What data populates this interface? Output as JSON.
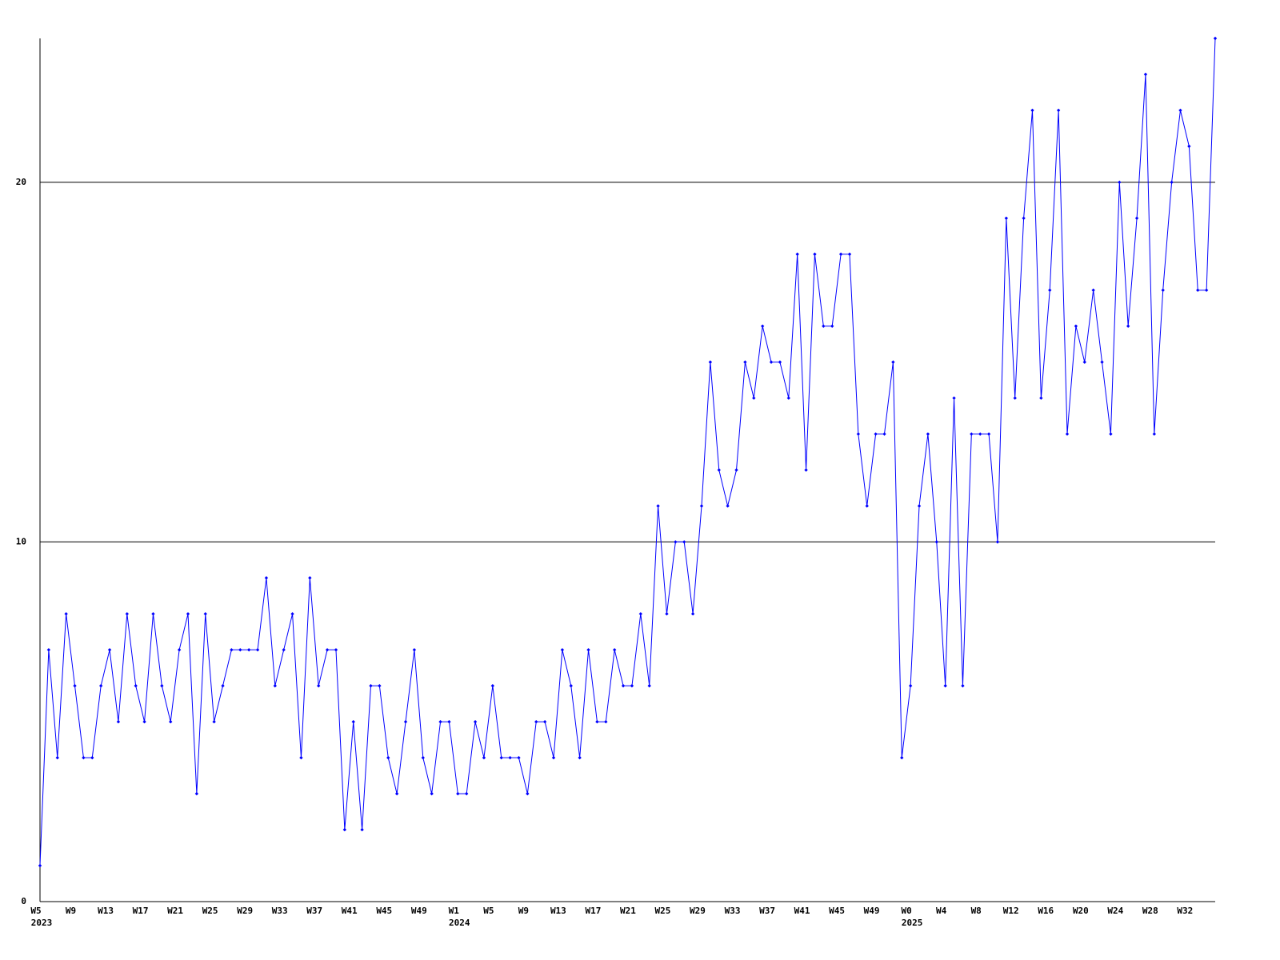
{
  "chart_data": {
    "type": "line",
    "categories": [
      "W5",
      null,
      null,
      null,
      "W9",
      null,
      null,
      null,
      "W13",
      null,
      null,
      null,
      "W17",
      null,
      null,
      null,
      "W21",
      null,
      null,
      null,
      "W25",
      null,
      null,
      null,
      "W29",
      null,
      null,
      null,
      "W33",
      null,
      null,
      null,
      "W37",
      null,
      null,
      null,
      "W41",
      null,
      null,
      null,
      "W45",
      null,
      null,
      null,
      "W49",
      null,
      null,
      null,
      "W1",
      null,
      null,
      null,
      "W5",
      null,
      null,
      null,
      "W9",
      null,
      null,
      null,
      "W13",
      null,
      null,
      null,
      "W17",
      null,
      null,
      null,
      "W21",
      null,
      null,
      null,
      "W25",
      null,
      null,
      null,
      "W29",
      null,
      null,
      null,
      "W33",
      null,
      null,
      null,
      "W37",
      null,
      null,
      null,
      "W41",
      null,
      null,
      null,
      "W45",
      null,
      null,
      null,
      "W49",
      null,
      null,
      null,
      "W0",
      null,
      null,
      null,
      "W4",
      null,
      null,
      null,
      "W8",
      null,
      null,
      null,
      "W12",
      null,
      null,
      null,
      "W16",
      null,
      null,
      null,
      "W20",
      null,
      null,
      null,
      "W24",
      null,
      null,
      null,
      "W28",
      null,
      null,
      null,
      "W32",
      null,
      null,
      null
    ],
    "category_years": [
      "2023",
      null,
      null,
      null,
      null,
      null,
      null,
      null,
      null,
      null,
      null,
      null,
      null,
      null,
      null,
      null,
      null,
      null,
      null,
      null,
      null,
      null,
      null,
      null,
      null,
      null,
      null,
      null,
      null,
      null,
      null,
      null,
      null,
      null,
      null,
      null,
      null,
      null,
      null,
      null,
      null,
      null,
      null,
      null,
      null,
      null,
      null,
      null,
      "2024",
      null,
      null,
      null,
      null,
      null,
      null,
      null,
      null,
      null,
      null,
      null,
      null,
      null,
      null,
      null,
      null,
      null,
      null,
      null,
      null,
      null,
      null,
      null,
      null,
      null,
      null,
      null,
      null,
      null,
      null,
      null,
      null,
      null,
      null,
      null,
      null,
      null,
      null,
      null,
      null,
      null,
      null,
      null,
      null,
      null,
      null,
      null,
      null,
      null,
      null,
      null,
      "2025",
      null,
      null,
      null,
      null,
      null,
      null,
      null,
      null,
      null,
      null,
      null,
      null,
      null,
      null,
      null,
      null,
      null,
      null,
      null,
      null,
      null,
      null,
      null,
      null,
      null,
      null,
      null,
      null,
      null,
      null,
      null,
      null,
      null,
      null,
      null
    ],
    "values": [
      1,
      7,
      4,
      8,
      6,
      4,
      4,
      6,
      7,
      5,
      8,
      6,
      5,
      8,
      6,
      5,
      7,
      8,
      3,
      8,
      5,
      6,
      7,
      7,
      7,
      7,
      9,
      6,
      7,
      8,
      4,
      9,
      6,
      7,
      7,
      2,
      5,
      2,
      6,
      6,
      4,
      3,
      5,
      7,
      4,
      3,
      5,
      5,
      3,
      3,
      5,
      4,
      6,
      4,
      4,
      4,
      3,
      5,
      5,
      4,
      7,
      6,
      4,
      7,
      5,
      5,
      7,
      6,
      6,
      8,
      6,
      11,
      8,
      10,
      10,
      8,
      11,
      15,
      12,
      11,
      12,
      15,
      14,
      16,
      15,
      15,
      14,
      18,
      12,
      18,
      16,
      16,
      18,
      18,
      13,
      11,
      13,
      13,
      15,
      4,
      6,
      11,
      13,
      10,
      6,
      14,
      6,
      13,
      13,
      13,
      10,
      19,
      14,
      19,
      22,
      14,
      17,
      22,
      13,
      16,
      15,
      17,
      15,
      13,
      20,
      16,
      19,
      23,
      13,
      17,
      20,
      22,
      21,
      17,
      17,
      24
    ],
    "color": "#0000ff",
    "ylim": [
      0,
      24
    ],
    "yticks": [
      0,
      10,
      20
    ],
    "grid": true
  }
}
